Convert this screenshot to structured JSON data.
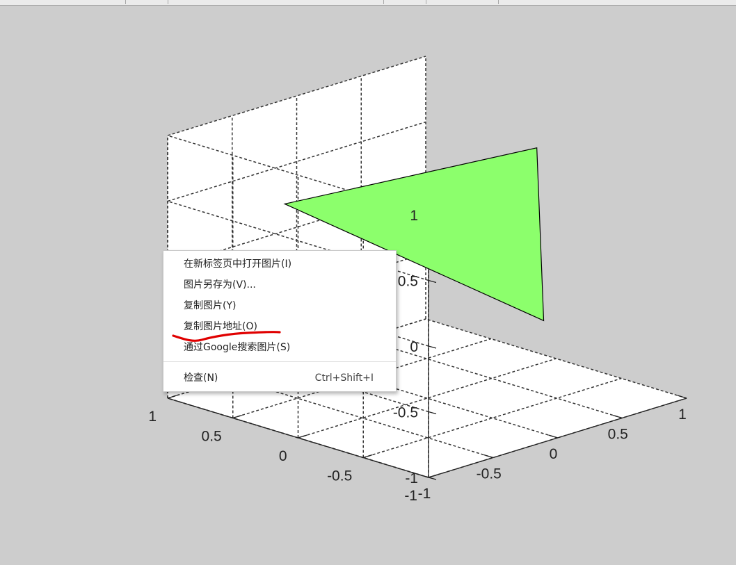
{
  "colors": {
    "figure_background": "#cdcdcd",
    "axes_face": "#ffffff",
    "patch_fill": "#8cff6c",
    "patch_edge": "#000000",
    "annotation_stroke": "#e00000"
  },
  "context_menu": {
    "items": [
      {
        "label": "在新标签页中打开图片(I)"
      },
      {
        "label": "图片另存为(V)..."
      },
      {
        "label": "复制图片(Y)"
      },
      {
        "label": "复制图片地址(O)"
      },
      {
        "label": "通过Google搜索图片(S)"
      },
      {
        "label": "检查(N)",
        "shortcut": "Ctrl+Shift+I"
      }
    ]
  },
  "chart_data": {
    "type": "patch3d",
    "grid": true,
    "x_ticks": [
      "-1",
      "-0.5",
      "0",
      "0.5",
      "1"
    ],
    "y_ticks": [
      "-1",
      "-0.5",
      "0",
      "0.5",
      "1"
    ],
    "z_ticks": [
      "-1",
      "-0.5",
      "0",
      "0.5",
      "1"
    ],
    "xlim": [
      -1,
      1
    ],
    "ylim": [
      -1,
      1
    ],
    "zlim": [
      -1,
      1
    ],
    "patch_vertices": [
      {
        "x": -0.75,
        "y": 0.35,
        "z": 0.6
      },
      {
        "x": 0.85,
        "y": 0.0,
        "z": 0.65
      },
      {
        "x": 0.6,
        "y": -0.3,
        "z": -0.5
      }
    ]
  }
}
